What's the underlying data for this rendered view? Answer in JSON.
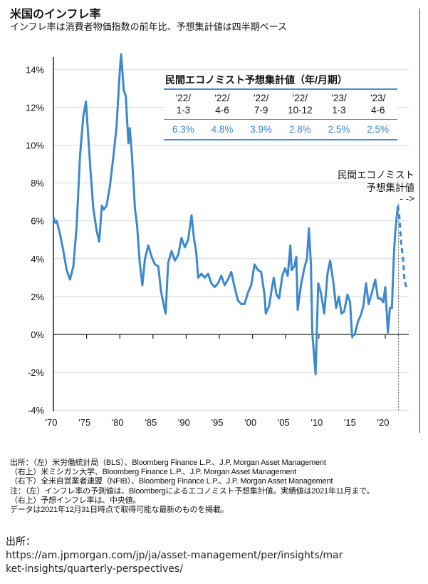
{
  "header": {
    "title": "米国のインフレ率",
    "subtitle": "インフレ率は消費者物価指数の前年比、予想集計値は四半期ベース"
  },
  "chart_data": {
    "type": "line",
    "title": "米国のインフレ率",
    "ylim": [
      -4,
      14
    ],
    "xlim": [
      1970,
      2024
    ],
    "grid": true,
    "y_ticks": [
      "-4%",
      "-2%",
      "0%",
      "2%",
      "4%",
      "6%",
      "8%",
      "10%",
      "12%",
      "14%"
    ],
    "x_ticks": [
      "'70",
      "'75",
      "'80",
      "'85",
      "'90",
      "'95",
      "'00",
      "'05",
      "'10",
      "'15",
      "'20"
    ],
    "color": "#3d89cf",
    "actual": [
      [
        1970,
        6.2
      ],
      [
        1970.3,
        5.9
      ],
      [
        1970.5,
        6.0
      ],
      [
        1971,
        5.3
      ],
      [
        1971.5,
        4.4
      ],
      [
        1972,
        3.4
      ],
      [
        1972.5,
        2.9
      ],
      [
        1973,
        3.6
      ],
      [
        1973.5,
        5.7
      ],
      [
        1974,
        9.4
      ],
      [
        1974.5,
        11.5
      ],
      [
        1974.9,
        12.3
      ],
      [
        1975.3,
        10.2
      ],
      [
        1975.6,
        8.6
      ],
      [
        1976,
        6.7
      ],
      [
        1976.5,
        5.5
      ],
      [
        1976.9,
        4.9
      ],
      [
        1977.3,
        6.8
      ],
      [
        1977.6,
        6.6
      ],
      [
        1978,
        6.8
      ],
      [
        1978.5,
        7.8
      ],
      [
        1979,
        9.3
      ],
      [
        1979.5,
        10.9
      ],
      [
        1980,
        13.9
      ],
      [
        1980.2,
        14.8
      ],
      [
        1980.6,
        12.9
      ],
      [
        1980.9,
        12.6
      ],
      [
        1981.3,
        10.1
      ],
      [
        1981.5,
        10.9
      ],
      [
        1981.8,
        9.6
      ],
      [
        1982.3,
        6.6
      ],
      [
        1982.6,
        5.8
      ],
      [
        1983,
        3.8
      ],
      [
        1983.4,
        2.6
      ],
      [
        1983.8,
        4.0
      ],
      [
        1984.3,
        4.7
      ],
      [
        1984.8,
        4.1
      ],
      [
        1985.3,
        3.7
      ],
      [
        1985.8,
        3.6
      ],
      [
        1986.2,
        2.3
      ],
      [
        1986.6,
        1.6
      ],
      [
        1986.9,
        1.1
      ],
      [
        1987.3,
        3.8
      ],
      [
        1987.8,
        4.4
      ],
      [
        1988.3,
        3.9
      ],
      [
        1988.8,
        4.2
      ],
      [
        1989.3,
        5.1
      ],
      [
        1989.8,
        4.6
      ],
      [
        1990.3,
        5.0
      ],
      [
        1990.8,
        6.3
      ],
      [
        1991.2,
        5.0
      ],
      [
        1991.5,
        4.4
      ],
      [
        1991.8,
        3.0
      ],
      [
        1992.3,
        3.2
      ],
      [
        1992.8,
        3.0
      ],
      [
        1993.3,
        3.2
      ],
      [
        1993.8,
        2.7
      ],
      [
        1994.3,
        2.5
      ],
      [
        1994.8,
        2.7
      ],
      [
        1995.3,
        3.1
      ],
      [
        1995.8,
        2.6
      ],
      [
        1996.3,
        2.9
      ],
      [
        1996.8,
        3.3
      ],
      [
        1997.3,
        2.5
      ],
      [
        1997.8,
        1.8
      ],
      [
        1998.3,
        1.6
      ],
      [
        1998.8,
        1.6
      ],
      [
        1999.3,
        2.2
      ],
      [
        1999.8,
        2.6
      ],
      [
        2000.3,
        3.7
      ],
      [
        2000.8,
        3.4
      ],
      [
        2001.3,
        3.3
      ],
      [
        2001.8,
        2.1
      ],
      [
        2002.0,
        1.1
      ],
      [
        2002.5,
        1.5
      ],
      [
        2002.9,
        2.4
      ],
      [
        2003.2,
        3.0
      ],
      [
        2003.6,
        2.1
      ],
      [
        2004.0,
        1.9
      ],
      [
        2004.5,
        3.1
      ],
      [
        2004.9,
        3.5
      ],
      [
        2005.3,
        3.1
      ],
      [
        2005.7,
        4.7
      ],
      [
        2005.9,
        3.4
      ],
      [
        2006.3,
        3.6
      ],
      [
        2006.6,
        4.1
      ],
      [
        2006.8,
        1.3
      ],
      [
        2007.3,
        2.6
      ],
      [
        2007.8,
        3.5
      ],
      [
        2008.2,
        4.0
      ],
      [
        2008.5,
        5.6
      ],
      [
        2008.8,
        3.7
      ],
      [
        2009.0,
        0.1
      ],
      [
        2009.5,
        -2.1
      ],
      [
        2009.9,
        2.7
      ],
      [
        2010.3,
        2.2
      ],
      [
        2010.8,
        1.1
      ],
      [
        2011.3,
        3.2
      ],
      [
        2011.7,
        3.9
      ],
      [
        2012.2,
        2.7
      ],
      [
        2012.6,
        1.4
      ],
      [
        2013.0,
        2.0
      ],
      [
        2013.4,
        1.1
      ],
      [
        2013.8,
        1.2
      ],
      [
        2014.3,
        2.1
      ],
      [
        2014.7,
        1.7
      ],
      [
        2015.0,
        -0.1
      ],
      [
        2015.4,
        0.0
      ],
      [
        2015.9,
        0.7
      ],
      [
        2016.3,
        1.0
      ],
      [
        2016.7,
        1.5
      ],
      [
        2017.1,
        2.7
      ],
      [
        2017.5,
        1.6
      ],
      [
        2017.9,
        2.1
      ],
      [
        2018.5,
        2.9
      ],
      [
        2018.9,
        1.9
      ],
      [
        2019.3,
        1.9
      ],
      [
        2019.7,
        1.7
      ],
      [
        2020.0,
        2.5
      ],
      [
        2020.4,
        0.1
      ],
      [
        2020.7,
        1.4
      ],
      [
        2021.0,
        1.4
      ],
      [
        2021.3,
        4.2
      ],
      [
        2021.5,
        5.4
      ],
      [
        2021.9,
        6.8
      ]
    ],
    "forecast": [
      [
        2021.9,
        6.8
      ],
      [
        2022.1,
        6.3
      ],
      [
        2022.4,
        4.8
      ],
      [
        2022.7,
        3.9
      ],
      [
        2022.9,
        2.8
      ],
      [
        2023.2,
        2.5
      ],
      [
        2023.4,
        2.5
      ]
    ],
    "forecast_start": 2022
  },
  "forecast_table": {
    "title": "民間エコノミスト予想集計値（年/月期）",
    "periods": [
      [
        "'22/",
        "1-3"
      ],
      [
        "'22/",
        "4-6"
      ],
      [
        "'22/",
        "7-9"
      ],
      [
        "'22/",
        "10-12"
      ],
      [
        "'23/",
        "1-3"
      ],
      [
        "'23/",
        "4-6"
      ]
    ],
    "values": [
      "6.3%",
      "4.8%",
      "3.9%",
      "2.8%",
      "2.5%",
      "2.5%"
    ]
  },
  "annotation": {
    "line1": "民間エコノミスト",
    "line2": "予想集計値",
    "arrow": "- ->"
  },
  "notes": [
    "出所：（左）米労働統計局（BLS）、Bloomberg Finance L.P.、J.P. Morgan Asset Management",
    "（右上）米ミシガン大学、Bloomberg Finance L.P.、J.P. Morgan Asset Management",
    "（右下）全米自営業者連盟（NFIB）、Bloomberg Finance L.P.、J.P. Morgan Asset Management",
    "注：（左）インフレ率の予測値は、Bloombergによるエコノミスト予想集計値。実績値は2021年11月まで。",
    "（右上）予想インフレ率は、中央値。",
    "データは2021年12月31日時点で取得可能な最新のものを掲載。"
  ],
  "source": {
    "label": "出所：",
    "url": "https://am.jpmorgan.com/jp/ja/asset-management/per/insights/market-insights/quarterly-perspectives/"
  }
}
